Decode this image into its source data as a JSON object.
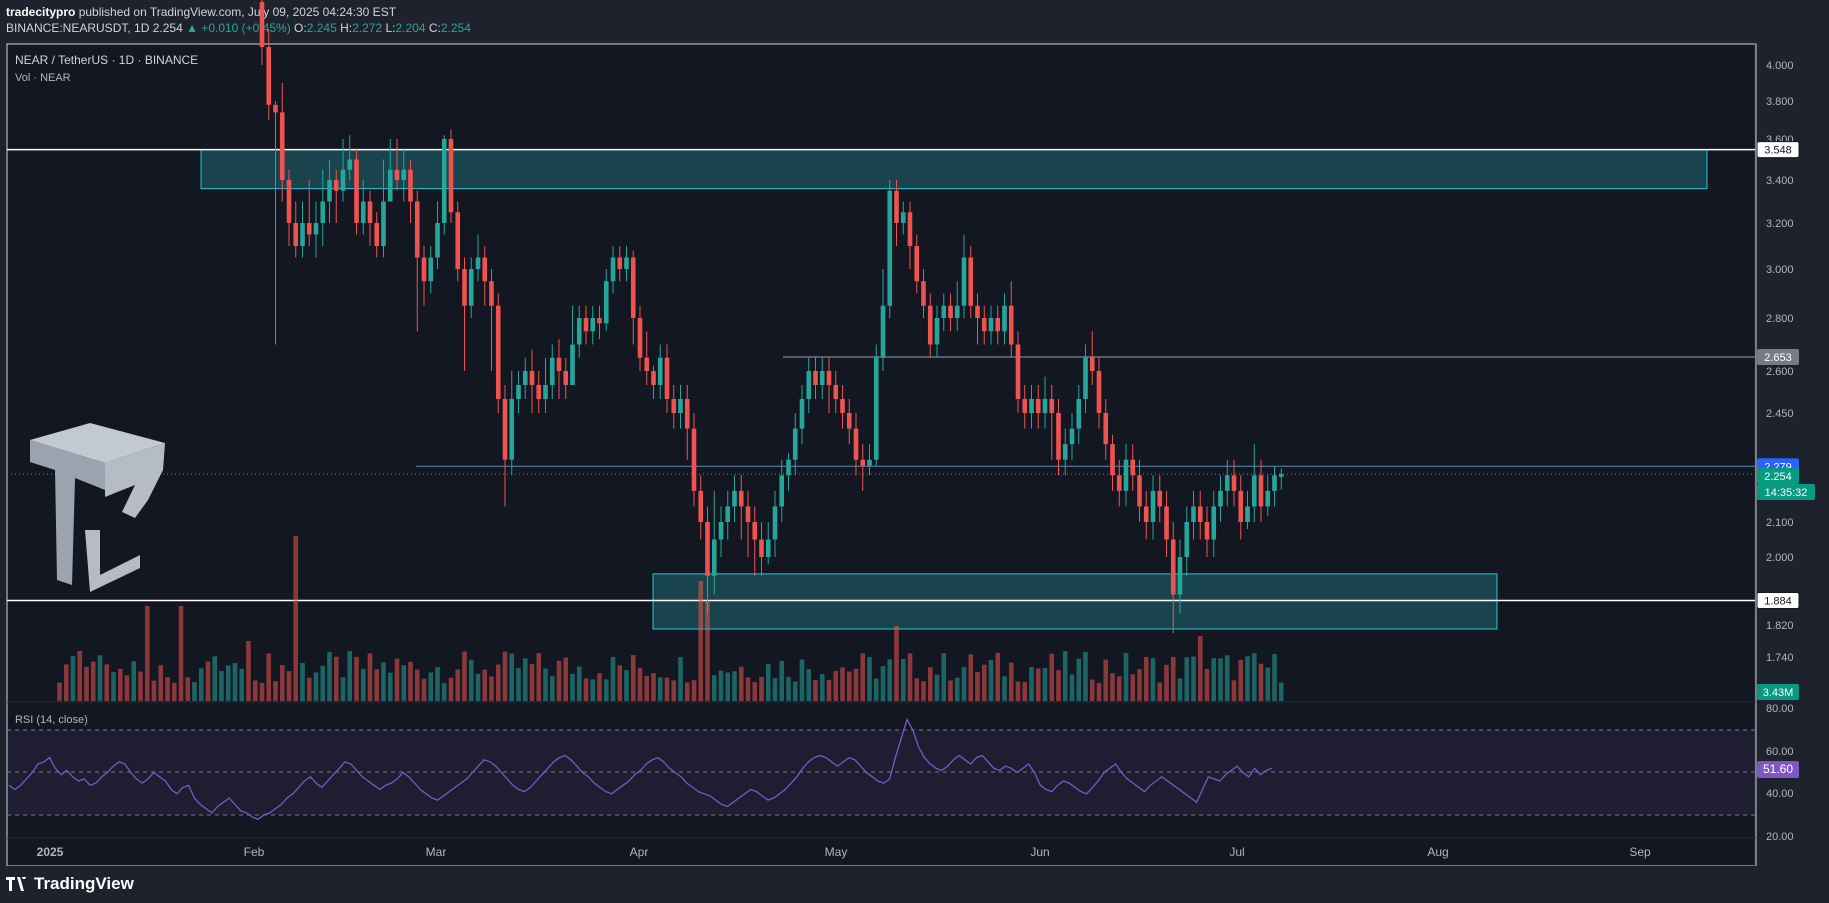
{
  "header": {
    "publisher": "tradecitypro",
    "published_text": "published on TradingView.com, July 09, 2025 04:24:30 EST",
    "symbol": "BINANCE:NEARUSDT, 1D",
    "last": "2.254",
    "change": "▲ +0.010 (+0.45%)",
    "o_label": "O:",
    "o_value": "2.245",
    "h_label": "H:",
    "h_value": "2.272",
    "l_label": "L:",
    "l_value": "2.204",
    "c_label": "C:",
    "c_value": "2.254"
  },
  "legend": {
    "title": "NEAR / TetherUS · 1D · BINANCE",
    "volume": "Vol · NEAR"
  },
  "rsi": {
    "label": "RSI (14, close)",
    "value_label": "51.60",
    "ticks": [
      "80.00",
      "60.00",
      "40.00",
      "20.00"
    ],
    "values": [
      44,
      42,
      44,
      47,
      50,
      54,
      55,
      57,
      52,
      49,
      51,
      48,
      46,
      47,
      44,
      45,
      48,
      50,
      53,
      55,
      54,
      50,
      47,
      45,
      47,
      50,
      48,
      46,
      42,
      40,
      43,
      44,
      38,
      35,
      33,
      31,
      34,
      36,
      38,
      35,
      32,
      31,
      29,
      28,
      30,
      31,
      33,
      35,
      38,
      40,
      43,
      46,
      48,
      45,
      43,
      46,
      49,
      52,
      55,
      54,
      51,
      48,
      46,
      44,
      42,
      44,
      45,
      47,
      50,
      48,
      45,
      42,
      40,
      38,
      37,
      39,
      41,
      43,
      45,
      47,
      50,
      53,
      56,
      55,
      53,
      50,
      47,
      44,
      42,
      41,
      43,
      46,
      49,
      52,
      55,
      57,
      58,
      56,
      53,
      50,
      48,
      45,
      43,
      41,
      40,
      42,
      44,
      46,
      49,
      51,
      54,
      56,
      57,
      55,
      52,
      50,
      48,
      45,
      43,
      41,
      40,
      39,
      37,
      35,
      34,
      36,
      38,
      40,
      42,
      41,
      39,
      37,
      38,
      40,
      42,
      45,
      48,
      52,
      55,
      57,
      58,
      57,
      55,
      53,
      55,
      57,
      56,
      53,
      50,
      48,
      46,
      45,
      47,
      57,
      66,
      75,
      70,
      62,
      57,
      54,
      52,
      51,
      53,
      56,
      58,
      56,
      54,
      57,
      58,
      55,
      52,
      51,
      53,
      52,
      50,
      52,
      54,
      50,
      44,
      42,
      41,
      44,
      46,
      45,
      43,
      41,
      40,
      43,
      46,
      50,
      52,
      54,
      50,
      47,
      45,
      43,
      41,
      44,
      46,
      48,
      46,
      44,
      42,
      40,
      38,
      36,
      42,
      48,
      47,
      46,
      49,
      51,
      53,
      50,
      48,
      52,
      49,
      51,
      52
    ],
    "color": "#7e57c2"
  },
  "price_axis": {
    "ticks": [
      "4.000",
      "3.800",
      "3.600",
      "3.400",
      "3.200",
      "3.000",
      "2.800",
      "2.600",
      "2.450",
      "2.100",
      "2.000",
      "1.880",
      "1.820",
      "1.740"
    ],
    "tags": [
      {
        "text": "3.548",
        "style": "white"
      },
      {
        "text": "2.653",
        "style": "gray"
      },
      {
        "text": "2.279",
        "style": "blue"
      },
      {
        "text": "2.254",
        "style": "green"
      },
      {
        "text": "14:35:32",
        "style": "green"
      },
      {
        "text": "1.884",
        "style": "white"
      },
      {
        "text": "3.43M",
        "style": "green"
      }
    ]
  },
  "time_axis": {
    "labels": [
      "2025",
      "Feb",
      "Mar",
      "Apr",
      "May",
      "Jun",
      "Jul",
      "Aug",
      "Sep"
    ]
  },
  "chart_data": {
    "type": "candlestick",
    "colors": {
      "up": "#26a69a",
      "down": "#ef5350",
      "zone": "#1f5c66",
      "zone_border": "#26c6da"
    },
    "levels": [
      3.548,
      2.653,
      2.279,
      1.884
    ],
    "zones": [
      {
        "low": 3.36,
        "high": 3.548
      },
      {
        "low": 1.81,
        "high": 1.955
      }
    ],
    "candles": [
      [
        4.35,
        4.1,
        4.5,
        4.0
      ],
      [
        4.1,
        3.78,
        4.2,
        3.7
      ],
      [
        3.78,
        3.74,
        3.8,
        2.7
      ],
      [
        3.74,
        3.4,
        3.9,
        3.3
      ],
      [
        3.4,
        3.2,
        3.45,
        3.1
      ],
      [
        3.2,
        3.1,
        3.3,
        3.05
      ],
      [
        3.1,
        3.2,
        3.3,
        3.05
      ],
      [
        3.2,
        3.15,
        3.4,
        3.1
      ],
      [
        3.15,
        3.2,
        3.3,
        3.05
      ],
      [
        3.2,
        3.3,
        3.45,
        3.1
      ],
      [
        3.3,
        3.4,
        3.5,
        3.2
      ],
      [
        3.4,
        3.35,
        3.45,
        3.2
      ],
      [
        3.35,
        3.45,
        3.6,
        3.3
      ],
      [
        3.45,
        3.5,
        3.62,
        3.4
      ],
      [
        3.5,
        3.2,
        3.55,
        3.15
      ],
      [
        3.2,
        3.3,
        3.4,
        3.15
      ],
      [
        3.3,
        3.2,
        3.35,
        3.1
      ],
      [
        3.2,
        3.1,
        3.25,
        3.05
      ],
      [
        3.1,
        3.3,
        3.5,
        3.05
      ],
      [
        3.3,
        3.45,
        3.6,
        3.3
      ],
      [
        3.45,
        3.4,
        3.6,
        3.35
      ],
      [
        3.4,
        3.45,
        3.55,
        3.3
      ],
      [
        3.45,
        3.3,
        3.5,
        3.2
      ],
      [
        3.3,
        3.05,
        3.35,
        2.75
      ],
      [
        3.05,
        2.95,
        3.1,
        2.85
      ],
      [
        2.95,
        3.05,
        3.1,
        2.9
      ],
      [
        3.05,
        3.2,
        3.3,
        3.0
      ],
      [
        3.2,
        3.6,
        3.62,
        3.15
      ],
      [
        3.6,
        3.25,
        3.65,
        3.2
      ],
      [
        3.25,
        3.0,
        3.3,
        2.95
      ],
      [
        3.0,
        2.85,
        3.05,
        2.6
      ],
      [
        2.85,
        3.0,
        3.05,
        2.8
      ],
      [
        3.0,
        3.05,
        3.15,
        2.95
      ],
      [
        3.05,
        2.95,
        3.1,
        2.85
      ],
      [
        2.95,
        2.85,
        3.0,
        2.6
      ],
      [
        2.85,
        2.5,
        2.9,
        2.45
      ],
      [
        2.5,
        2.3,
        2.55,
        2.15
      ],
      [
        2.3,
        2.5,
        2.6,
        2.25
      ],
      [
        2.5,
        2.55,
        2.6,
        2.45
      ],
      [
        2.55,
        2.6,
        2.65,
        2.5
      ],
      [
        2.6,
        2.55,
        2.68,
        2.45
      ],
      [
        2.55,
        2.5,
        2.6,
        2.45
      ],
      [
        2.5,
        2.55,
        2.65,
        2.45
      ],
      [
        2.55,
        2.65,
        2.7,
        2.5
      ],
      [
        2.65,
        2.6,
        2.72,
        2.5
      ],
      [
        2.6,
        2.55,
        2.65,
        2.5
      ],
      [
        2.55,
        2.7,
        2.85,
        2.55
      ],
      [
        2.7,
        2.8,
        2.85,
        2.65
      ],
      [
        2.8,
        2.75,
        2.85,
        2.7
      ],
      [
        2.75,
        2.8,
        2.85,
        2.7
      ],
      [
        2.8,
        2.78,
        2.85,
        2.72
      ],
      [
        2.78,
        2.95,
        3.0,
        2.75
      ],
      [
        2.95,
        3.05,
        3.1,
        2.9
      ],
      [
        3.05,
        3.0,
        3.1,
        2.95
      ],
      [
        3.0,
        3.05,
        3.1,
        2.95
      ],
      [
        3.05,
        2.8,
        3.08,
        2.7
      ],
      [
        2.8,
        2.65,
        2.85,
        2.6
      ],
      [
        2.65,
        2.6,
        2.75,
        2.55
      ],
      [
        2.6,
        2.55,
        2.62,
        2.5
      ],
      [
        2.55,
        2.65,
        2.7,
        2.5
      ],
      [
        2.65,
        2.5,
        2.7,
        2.45
      ],
      [
        2.5,
        2.45,
        2.55,
        2.4
      ],
      [
        2.45,
        2.5,
        2.55,
        2.4
      ],
      [
        2.5,
        2.4,
        2.55,
        2.3
      ],
      [
        2.4,
        2.2,
        2.45,
        2.15
      ],
      [
        2.2,
        2.1,
        2.25,
        2.05
      ],
      [
        2.1,
        1.95,
        2.15,
        1.85
      ],
      [
        1.95,
        2.05,
        2.2,
        1.9
      ],
      [
        2.05,
        2.1,
        2.15,
        2.0
      ],
      [
        2.1,
        2.15,
        2.2,
        2.05
      ],
      [
        2.15,
        2.2,
        2.25,
        2.1
      ],
      [
        2.2,
        2.15,
        2.25,
        2.05
      ],
      [
        2.15,
        2.1,
        2.2,
        2.0
      ],
      [
        2.1,
        2.05,
        2.15,
        1.95
      ],
      [
        2.05,
        2.0,
        2.1,
        1.95
      ],
      [
        2.0,
        2.05,
        2.1,
        1.98
      ],
      [
        2.05,
        2.15,
        2.2,
        2.0
      ],
      [
        2.15,
        2.25,
        2.3,
        2.1
      ],
      [
        2.25,
        2.3,
        2.32,
        2.2
      ],
      [
        2.3,
        2.4,
        2.45,
        2.25
      ],
      [
        2.4,
        2.5,
        2.55,
        2.35
      ],
      [
        2.5,
        2.6,
        2.65,
        2.45
      ],
      [
        2.6,
        2.55,
        2.65,
        2.5
      ],
      [
        2.55,
        2.6,
        2.65,
        2.5
      ],
      [
        2.6,
        2.55,
        2.65,
        2.45
      ],
      [
        2.55,
        2.5,
        2.6,
        2.45
      ],
      [
        2.5,
        2.45,
        2.55,
        2.4
      ],
      [
        2.45,
        2.4,
        2.5,
        2.35
      ],
      [
        2.4,
        2.3,
        2.45,
        2.25
      ],
      [
        2.3,
        2.28,
        2.35,
        2.2
      ],
      [
        2.28,
        2.3,
        2.35,
        2.25
      ],
      [
        2.3,
        2.65,
        2.7,
        2.28
      ],
      [
        2.65,
        2.85,
        3.0,
        2.6
      ],
      [
        2.85,
        3.35,
        3.4,
        2.8
      ],
      [
        3.35,
        3.2,
        3.4,
        3.1
      ],
      [
        3.2,
        3.25,
        3.3,
        3.15
      ],
      [
        3.25,
        3.1,
        3.3,
        3.0
      ],
      [
        3.1,
        2.95,
        3.15,
        2.9
      ],
      [
        2.95,
        2.85,
        3.0,
        2.8
      ],
      [
        2.85,
        2.7,
        2.9,
        2.65
      ],
      [
        2.7,
        2.8,
        2.85,
        2.65
      ],
      [
        2.8,
        2.85,
        2.9,
        2.75
      ],
      [
        2.85,
        2.8,
        2.9,
        2.75
      ],
      [
        2.8,
        2.85,
        2.95,
        2.75
      ],
      [
        2.85,
        3.05,
        3.15,
        2.8
      ],
      [
        3.05,
        2.85,
        3.1,
        2.8
      ],
      [
        2.85,
        2.8,
        2.9,
        2.7
      ],
      [
        2.8,
        2.75,
        2.85,
        2.7
      ],
      [
        2.75,
        2.8,
        2.85,
        2.7
      ],
      [
        2.8,
        2.75,
        2.85,
        2.7
      ],
      [
        2.75,
        2.85,
        2.9,
        2.7
      ],
      [
        2.85,
        2.7,
        2.95,
        2.65
      ],
      [
        2.7,
        2.5,
        2.75,
        2.45
      ],
      [
        2.5,
        2.45,
        2.55,
        2.4
      ],
      [
        2.45,
        2.5,
        2.55,
        2.4
      ],
      [
        2.5,
        2.45,
        2.55,
        2.4
      ],
      [
        2.45,
        2.5,
        2.58,
        2.4
      ],
      [
        2.5,
        2.45,
        2.55,
        2.3
      ],
      [
        2.45,
        2.3,
        2.5,
        2.25
      ],
      [
        2.3,
        2.35,
        2.4,
        2.25
      ],
      [
        2.35,
        2.4,
        2.45,
        2.3
      ],
      [
        2.4,
        2.5,
        2.55,
        2.35
      ],
      [
        2.5,
        2.65,
        2.7,
        2.45
      ],
      [
        2.65,
        2.6,
        2.75,
        2.55
      ],
      [
        2.6,
        2.45,
        2.65,
        2.4
      ],
      [
        2.45,
        2.35,
        2.5,
        2.3
      ],
      [
        2.35,
        2.25,
        2.38,
        2.2
      ],
      [
        2.25,
        2.2,
        2.3,
        2.15
      ],
      [
        2.2,
        2.3,
        2.35,
        2.15
      ],
      [
        2.3,
        2.25,
        2.35,
        2.2
      ],
      [
        2.25,
        2.15,
        2.3,
        2.1
      ],
      [
        2.15,
        2.1,
        2.2,
        2.05
      ],
      [
        2.1,
        2.2,
        2.25,
        2.05
      ],
      [
        2.2,
        2.15,
        2.25,
        2.1
      ],
      [
        2.15,
        2.05,
        2.2,
        2.0
      ],
      [
        2.05,
        1.9,
        2.1,
        1.8
      ],
      [
        1.9,
        2.0,
        2.05,
        1.85
      ],
      [
        2.0,
        2.1,
        2.15,
        1.95
      ],
      [
        2.1,
        2.15,
        2.2,
        2.05
      ],
      [
        2.15,
        2.1,
        2.2,
        2.05
      ],
      [
        2.1,
        2.05,
        2.15,
        2.0
      ],
      [
        2.05,
        2.15,
        2.2,
        2.0
      ],
      [
        2.15,
        2.2,
        2.25,
        2.1
      ],
      [
        2.2,
        2.25,
        2.3,
        2.15
      ],
      [
        2.25,
        2.2,
        2.3,
        2.15
      ],
      [
        2.2,
        2.1,
        2.25,
        2.05
      ],
      [
        2.1,
        2.15,
        2.2,
        2.08
      ],
      [
        2.15,
        2.25,
        2.35,
        2.1
      ],
      [
        2.25,
        2.15,
        2.3,
        2.1
      ],
      [
        2.15,
        2.2,
        2.25,
        2.12
      ],
      [
        2.2,
        2.25,
        2.28,
        2.15
      ],
      [
        2.245,
        2.254,
        2.272,
        2.204
      ]
    ],
    "volume_max_scale": 1
  }
}
